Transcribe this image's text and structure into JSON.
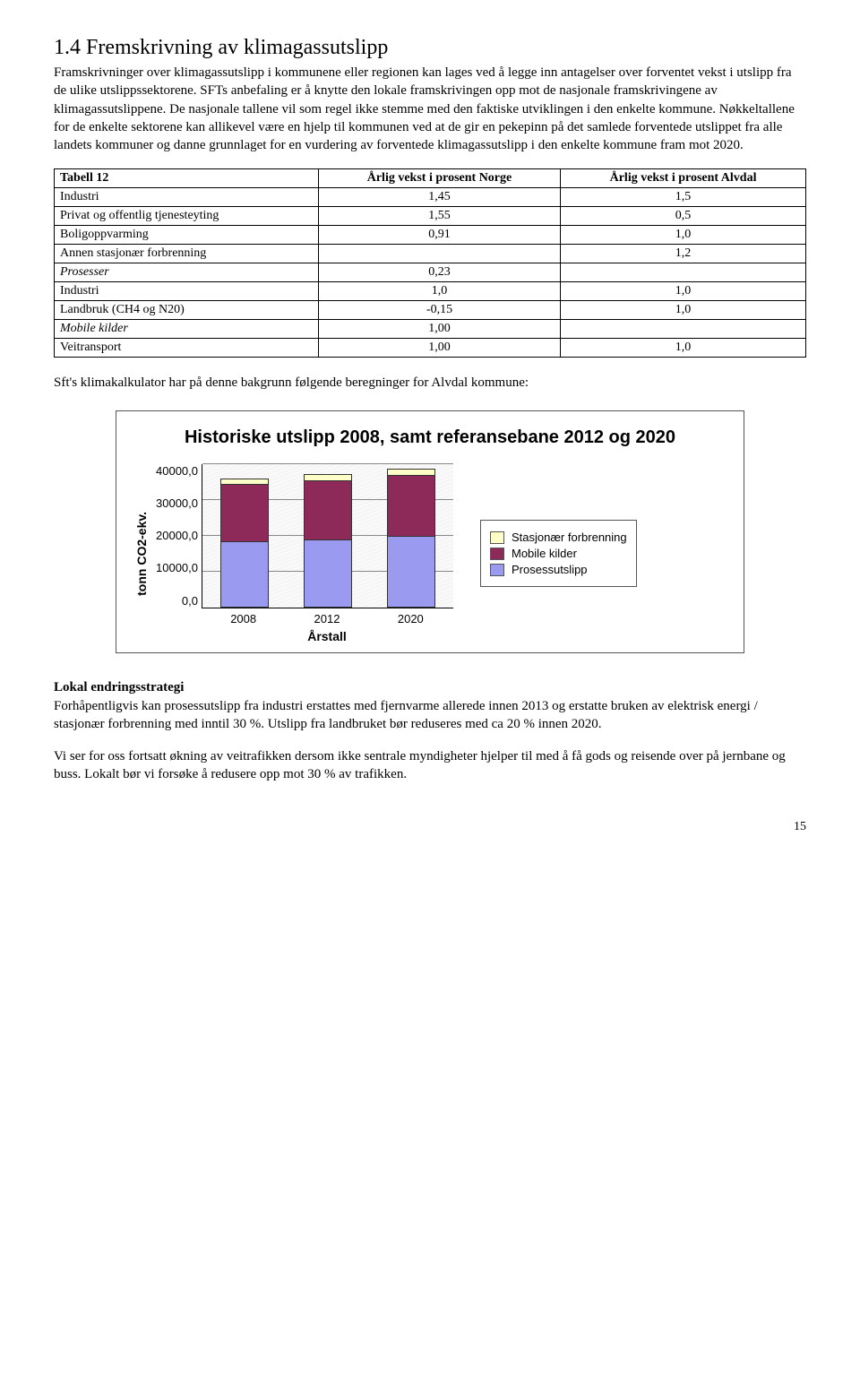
{
  "heading": "1.4    Fremskrivning av klimagassutslipp",
  "para1": "Framskrivninger over klimagassutslipp i kommunene eller regionen kan lages ved å legge inn antagelser over forventet vekst i utslipp fra de ulike utslippssektorene. SFTs anbefaling er å knytte den lokale framskrivingen opp mot de nasjonale framskrivingene av klimagassutslippene. De nasjonale tallene vil som regel ikke stemme med den faktiske utviklingen i den enkelte kommune. Nøkkeltallene for de enkelte sektorene kan allikevel være en hjelp til kommunen ved at de gir en pekepinn på det samlede forventede utslippet fra alle landets kommuner og danne grunnlaget for en vurdering av forventede klimagassutslipp i den enkelte kommune fram mot 2020.",
  "table": {
    "label": "Tabell 12",
    "col1": "Årlig vekst i prosent Norge",
    "col2": "Årlig vekst i prosent Alvdal",
    "rows": [
      {
        "name": "Industri",
        "v1": "1,45",
        "v2": "1,5",
        "italic": false
      },
      {
        "name": "Privat og offentlig tjenesteyting",
        "v1": "1,55",
        "v2": "0,5",
        "italic": false
      },
      {
        "name": "Boligoppvarming",
        "v1": "0,91",
        "v2": "1,0",
        "italic": false
      },
      {
        "name": "Annen stasjonær forbrenning",
        "v1": "",
        "v2": "1,2",
        "italic": false
      },
      {
        "name": "Prosesser",
        "v1": "0,23",
        "v2": "",
        "italic": true
      },
      {
        "name": "Industri",
        "v1": "1,0",
        "v2": "1,0",
        "italic": false
      },
      {
        "name": "Landbruk (CH4 og N20)",
        "v1": "-0,15",
        "v2": "1,0",
        "italic": false
      },
      {
        "name": "Mobile kilder",
        "v1": "1,00",
        "v2": "",
        "italic": true
      },
      {
        "name": "Veitransport",
        "v1": "1,00",
        "v2": "1,0",
        "italic": false
      }
    ]
  },
  "para2": "Sft's klimakalkulator har på denne bakgrunn følgende beregninger for Alvdal kommune:",
  "chart": {
    "title": "Historiske utslipp 2008, samt referansebane 2012 og 2020",
    "ylabel": "tonn CO2-ekv.",
    "xlabel": "Årstall",
    "ymax": 40000,
    "ytick_step": 10000,
    "yticks": [
      "40000,0",
      "30000,0",
      "20000,0",
      "10000,0",
      "0,0"
    ],
    "categories": [
      "2008",
      "2012",
      "2020"
    ],
    "series": [
      {
        "name": "Stasjonær forbrenning",
        "color": "#fdffc7"
      },
      {
        "name": "Mobile kilder",
        "color": "#8e2a5a"
      },
      {
        "name": "Prosessutslipp",
        "color": "#9a9af0"
      }
    ],
    "bars": [
      {
        "stasjonaer": 1500,
        "mobile": 16000,
        "prosess": 18500
      },
      {
        "stasjonaer": 1600,
        "mobile": 16500,
        "prosess": 19000
      },
      {
        "stasjonaer": 1700,
        "mobile": 17000,
        "prosess": 20000
      }
    ],
    "grid_color": "#888888",
    "background_color": "#ffffff"
  },
  "section2_title": "Lokal endringsstrategi",
  "para3": "Forhåpentligvis kan prosessutslipp fra industri erstattes med fjernvarme allerede innen 2013 og erstatte bruken av elektrisk energi / stasjonær forbrenning med inntil 30 %. Utslipp fra landbruket bør reduseres med ca 20 % innen 2020.",
  "para4": "Vi ser for oss fortsatt økning av veitrafikken dersom ikke sentrale myndigheter hjelper til med å få gods og reisende over på jernbane og buss. Lokalt bør vi forsøke å redusere opp mot 30 % av trafikken.",
  "pagenum": "15"
}
